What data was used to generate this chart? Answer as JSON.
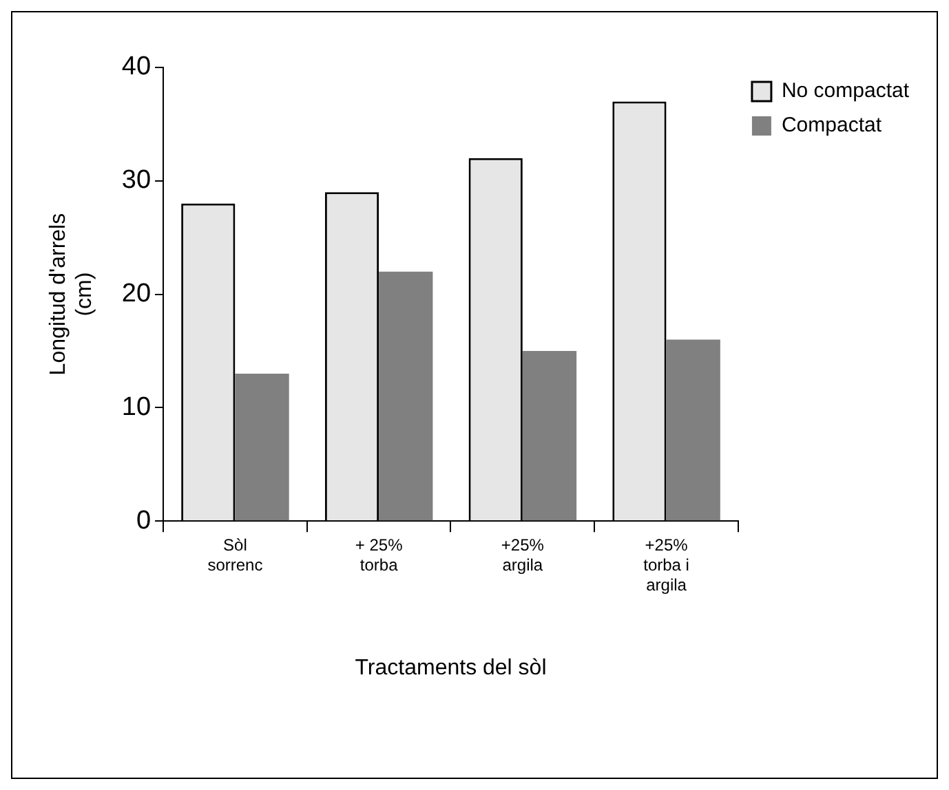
{
  "chart_data": {
    "type": "bar",
    "xlabel": "Tractaments del sòl",
    "ylabel": "Longitud d'arrels (cm)",
    "categories": [
      "Sòl sorrenc",
      "+ 25% torba",
      "+25% argila",
      "+25% torba i argila"
    ],
    "series": [
      {
        "name": "No compactat",
        "color": "#e6e6e6",
        "values": [
          28,
          29,
          32,
          37
        ]
      },
      {
        "name": "Compactat",
        "color": "#808080",
        "values": [
          13,
          22,
          15,
          16
        ]
      }
    ],
    "ylim": [
      0,
      40
    ],
    "yticks": [
      0,
      10,
      20,
      30,
      40
    ],
    "grid": false,
    "legend": "top right"
  }
}
